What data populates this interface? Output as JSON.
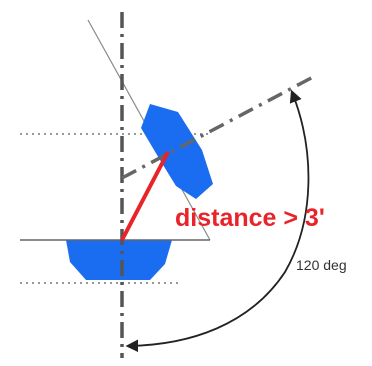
{
  "annotation": {
    "distance_text": "distance > 3'",
    "angle_text": "120 deg"
  },
  "colors": {
    "shape_blue": "#1a6cf0",
    "distance_red": "#e8232a",
    "line_gray": "#555555",
    "dotted_gray": "#777777",
    "thin_line": "#8a8a8a",
    "arc_black": "#222222",
    "text_dark": "#333333"
  }
}
